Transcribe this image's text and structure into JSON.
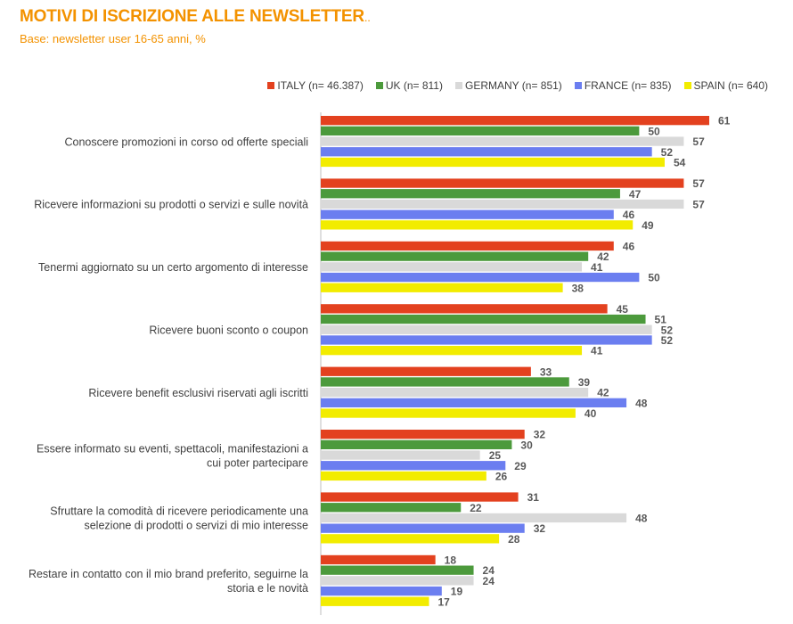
{
  "header": {
    "title": "MOTIVI DI ISCRIZIONE ALLE NEWSLETTER",
    "title_suffix": "..",
    "subtitle": "Base: newsletter user 16-65 anni, %"
  },
  "chart_data": {
    "type": "bar",
    "orientation": "horizontal",
    "legend_position": "top-right",
    "grid": false,
    "xlim": [
      0,
      61
    ],
    "categories": [
      [
        "Conoscere promozioni in corso od offerte speciali"
      ],
      [
        "Ricevere informazioni su prodotti o servizi e sulle novità"
      ],
      [
        "Tenermi aggiornato su un certo argomento di interesse"
      ],
      [
        "Ricevere buoni sconto o coupon"
      ],
      [
        "Ricevere benefit esclusivi riservati agli iscritti"
      ],
      [
        "Essere informato su eventi, spettacoli, manifestazioni a",
        "cui poter partecipare"
      ],
      [
        "Sfruttare la comodità di ricevere periodicamente una",
        "selezione di prodotti o servizi di mio interesse"
      ],
      [
        "Restare in contatto con il mio brand preferito, seguirne la",
        "storia e le novità"
      ]
    ],
    "series": [
      {
        "name": "ITALY (n= 46.387)",
        "color": "#e3411f",
        "values": [
          61,
          57,
          46,
          45,
          33,
          32,
          31,
          18
        ]
      },
      {
        "name": "UK (n= 811)",
        "color": "#4c9a3c",
        "values": [
          50,
          47,
          42,
          51,
          39,
          30,
          22,
          24
        ]
      },
      {
        "name": "GERMANY (n= 851)",
        "color": "#d9d9d9",
        "values": [
          57,
          57,
          41,
          52,
          42,
          25,
          48,
          24
        ]
      },
      {
        "name": "FRANCE (n= 835)",
        "color": "#6b7ef0",
        "values": [
          52,
          46,
          50,
          52,
          48,
          29,
          32,
          19
        ]
      },
      {
        "name": "SPAIN (n= 640)",
        "color": "#f2ec00",
        "values": [
          54,
          49,
          38,
          41,
          40,
          26,
          28,
          17
        ]
      }
    ]
  }
}
